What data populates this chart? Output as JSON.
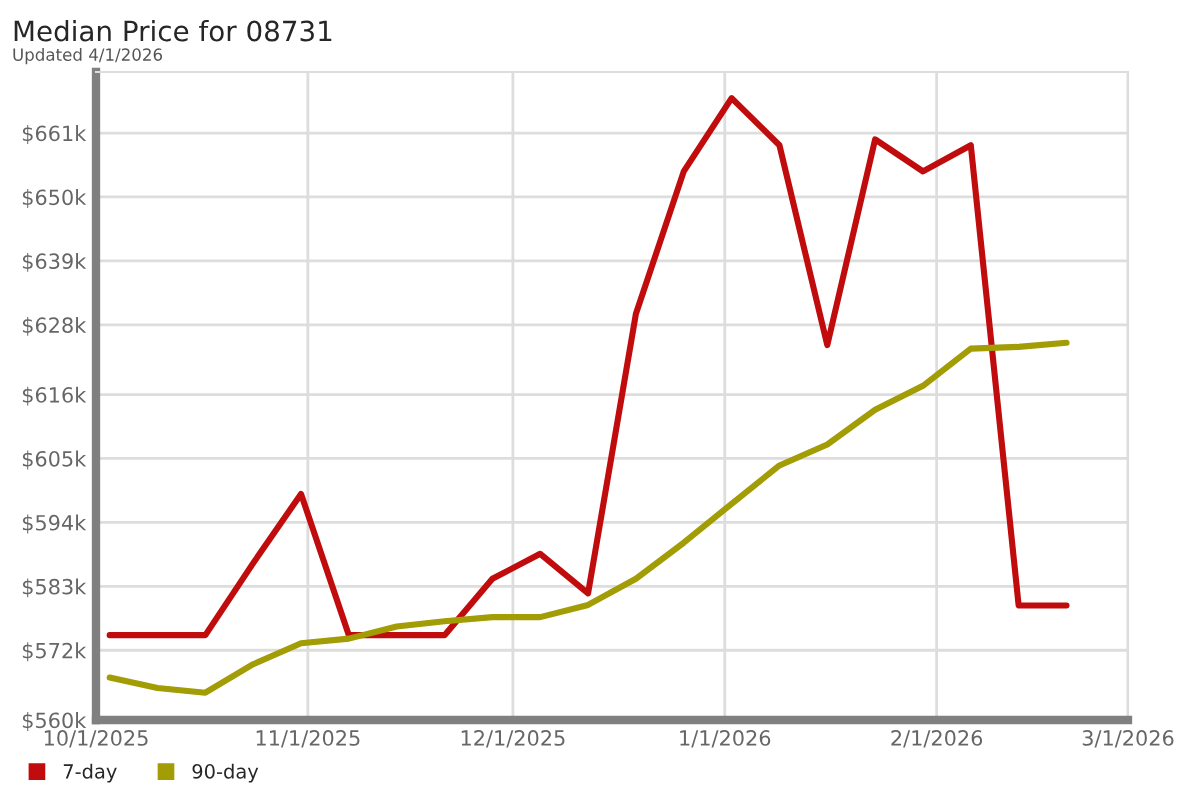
{
  "chart_data": {
    "type": "line",
    "title": "Median Price for 08731",
    "subtitle": "Updated 4/1/2026",
    "x": [
      "2025-10-03",
      "2025-10-10",
      "2025-10-17",
      "2025-10-24",
      "2025-10-31",
      "2025-11-07",
      "2025-11-14",
      "2025-11-21",
      "2025-11-28",
      "2025-12-05",
      "2025-12-12",
      "2025-12-19",
      "2025-12-26",
      "2026-01-02",
      "2026-01-09",
      "2026-01-16",
      "2026-01-23",
      "2026-01-30",
      "2026-02-06",
      "2026-02-13",
      "2026-02-20"
    ],
    "series": [
      {
        "name": "7-day",
        "color": "#c00c0c",
        "values": [
          574.6,
          574.6,
          574.6,
          587,
          598.9,
          574.6,
          574.6,
          574.6,
          584.3,
          588.6,
          581.8,
          629.9,
          654.4,
          667,
          658.9,
          624.5,
          659.9,
          654.4,
          658.9,
          579.7,
          579.7
        ]
      },
      {
        "name": "90-day",
        "color": "#a29c05",
        "values": [
          567.3,
          565.5,
          564.7,
          569.6,
          573.2,
          574,
          576.1,
          577,
          577.7,
          577.7,
          579.8,
          584.3,
          590.5,
          597.2,
          603.8,
          607.4,
          613.4,
          617.5,
          623.9,
          624.2,
          624.9
        ]
      }
    ],
    "xlim": [
      "2025-10-01",
      "2026-03-01"
    ],
    "xticks": [
      {
        "value": "2025-10-01",
        "label": "10/1/2025"
      },
      {
        "value": "2025-11-01",
        "label": "11/1/2025"
      },
      {
        "value": "2025-12-01",
        "label": "12/1/2025"
      },
      {
        "value": "2026-01-01",
        "label": "1/1/2026"
      },
      {
        "value": "2026-02-01",
        "label": "2/1/2026"
      },
      {
        "value": "2026-03-01",
        "label": "3/1/2026"
      }
    ],
    "ylim": [
      560,
      671.5
    ],
    "yticks": [
      {
        "value": 560,
        "label": "$560k"
      },
      {
        "value": 572,
        "label": "$572k"
      },
      {
        "value": 583,
        "label": "$583k"
      },
      {
        "value": 594,
        "label": "$594k"
      },
      {
        "value": 605,
        "label": "$605k"
      },
      {
        "value": 616,
        "label": "$616k"
      },
      {
        "value": 628,
        "label": "$628k"
      },
      {
        "value": 639,
        "label": "$639k"
      },
      {
        "value": 650,
        "label": "$650k"
      },
      {
        "value": 661,
        "label": "$661k"
      }
    ],
    "grid": true,
    "legend": "bottom left",
    "marker": "none",
    "line_style": "solid"
  }
}
